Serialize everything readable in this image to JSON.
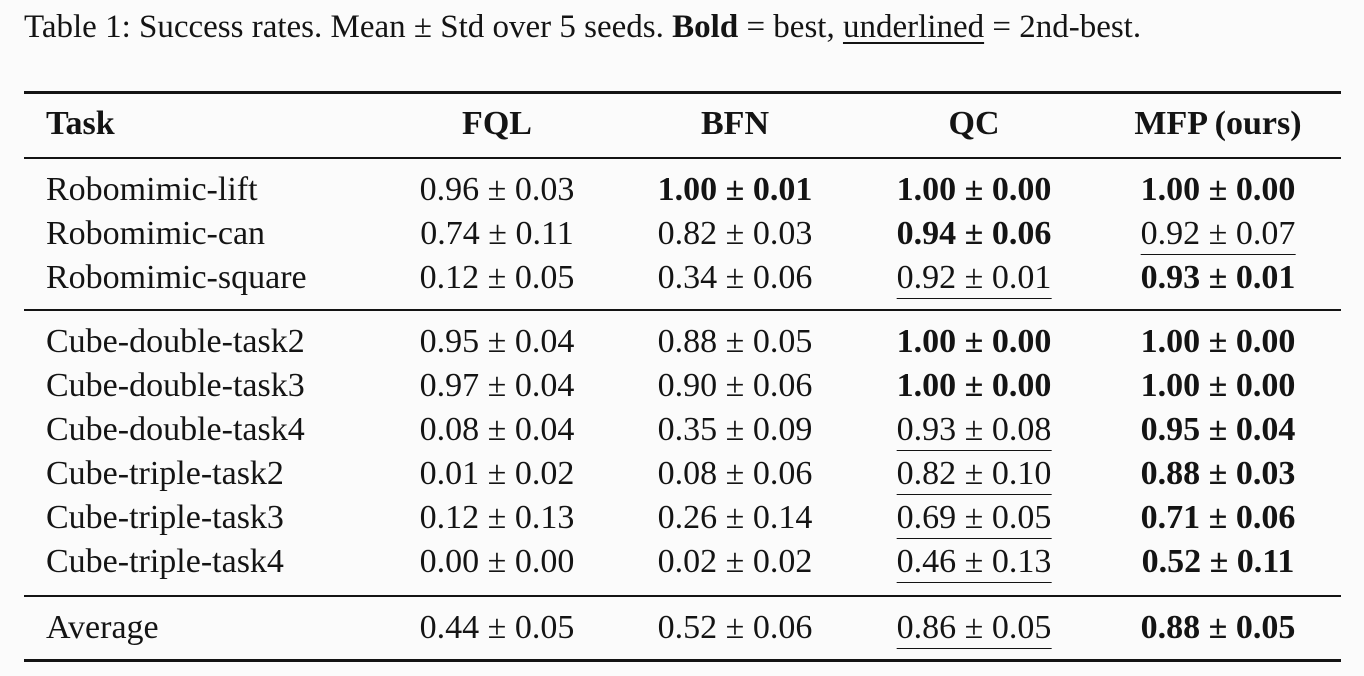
{
  "caption": {
    "prefix": "Table 1: Success rates. Mean ± Std over 5 seeds. ",
    "bold_word": "Bold",
    "mid": " = best, ",
    "underlined_word": "underlined",
    "suffix": " = 2nd-best."
  },
  "table": {
    "headers": [
      "Task",
      "FQL",
      "BFN",
      "QC",
      "MFP (ours)"
    ],
    "groups": [
      [
        {
          "task": "Robomimic-lift",
          "cells": [
            {
              "v": "0.96 ± 0.03",
              "s": ""
            },
            {
              "v": "1.00 ± 0.01",
              "s": "bold"
            },
            {
              "v": "1.00 ± 0.00",
              "s": "bold"
            },
            {
              "v": "1.00 ± 0.00",
              "s": "bold"
            }
          ]
        },
        {
          "task": "Robomimic-can",
          "cells": [
            {
              "v": "0.74 ± 0.11",
              "s": ""
            },
            {
              "v": "0.82 ± 0.03",
              "s": ""
            },
            {
              "v": "0.94 ± 0.06",
              "s": "bold"
            },
            {
              "v": "0.92 ± 0.07",
              "s": "under"
            }
          ]
        },
        {
          "task": "Robomimic-square",
          "cells": [
            {
              "v": "0.12 ± 0.05",
              "s": ""
            },
            {
              "v": "0.34 ± 0.06",
              "s": ""
            },
            {
              "v": "0.92 ± 0.01",
              "s": "under"
            },
            {
              "v": "0.93 ± 0.01",
              "s": "bold"
            }
          ]
        }
      ],
      [
        {
          "task": "Cube-double-task2",
          "cells": [
            {
              "v": "0.95 ± 0.04",
              "s": ""
            },
            {
              "v": "0.88 ± 0.05",
              "s": ""
            },
            {
              "v": "1.00 ± 0.00",
              "s": "bold"
            },
            {
              "v": "1.00 ± 0.00",
              "s": "bold"
            }
          ]
        },
        {
          "task": "Cube-double-task3",
          "cells": [
            {
              "v": "0.97 ± 0.04",
              "s": ""
            },
            {
              "v": "0.90 ± 0.06",
              "s": ""
            },
            {
              "v": "1.00 ± 0.00",
              "s": "bold"
            },
            {
              "v": "1.00 ± 0.00",
              "s": "bold"
            }
          ]
        },
        {
          "task": "Cube-double-task4",
          "cells": [
            {
              "v": "0.08 ± 0.04",
              "s": ""
            },
            {
              "v": "0.35 ± 0.09",
              "s": ""
            },
            {
              "v": "0.93 ± 0.08",
              "s": "under"
            },
            {
              "v": "0.95 ± 0.04",
              "s": "bold"
            }
          ]
        },
        {
          "task": "Cube-triple-task2",
          "cells": [
            {
              "v": "0.01 ± 0.02",
              "s": ""
            },
            {
              "v": "0.08 ± 0.06",
              "s": ""
            },
            {
              "v": "0.82 ± 0.10",
              "s": "under"
            },
            {
              "v": "0.88 ± 0.03",
              "s": "bold"
            }
          ]
        },
        {
          "task": "Cube-triple-task3",
          "cells": [
            {
              "v": "0.12 ± 0.13",
              "s": ""
            },
            {
              "v": "0.26 ± 0.14",
              "s": ""
            },
            {
              "v": "0.69 ± 0.05",
              "s": "under"
            },
            {
              "v": "0.71 ± 0.06",
              "s": "bold"
            }
          ]
        },
        {
          "task": "Cube-triple-task4",
          "cells": [
            {
              "v": "0.00 ± 0.00",
              "s": ""
            },
            {
              "v": "0.02 ± 0.02",
              "s": ""
            },
            {
              "v": "0.46 ± 0.13",
              "s": "under"
            },
            {
              "v": "0.52 ± 0.11",
              "s": "bold"
            }
          ]
        }
      ],
      [
        {
          "task": "Average",
          "cells": [
            {
              "v": "0.44 ± 0.05",
              "s": ""
            },
            {
              "v": "0.52 ± 0.06",
              "s": ""
            },
            {
              "v": "0.86 ± 0.05",
              "s": "under"
            },
            {
              "v": "0.88 ± 0.05",
              "s": "bold"
            }
          ]
        }
      ]
    ]
  }
}
